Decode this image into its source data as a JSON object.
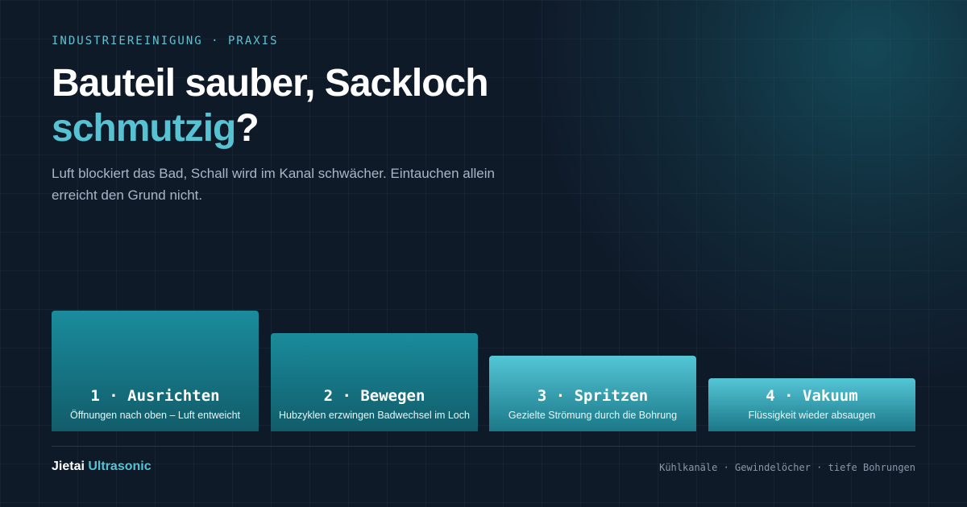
{
  "eyebrow": "INDUSTRIEREINIGUNG · PRAXIS",
  "title": {
    "main": "Bauteil sauber, Sackloch",
    "highlight": "schmutzig",
    "end": "?"
  },
  "subtitle": "Luft blockiert das Bad, Schall wird im Kanal schwächer. Eintauchen allein erreicht den Grund nicht.",
  "steps": [
    {
      "label": "1 · Ausrichten",
      "desc": "Öffnungen nach oben – Luft entweicht"
    },
    {
      "label": "2 · Bewegen",
      "desc": "Hubzyklen erzwingen Badwechsel im Loch"
    },
    {
      "label": "3 · Spritzen",
      "desc": "Gezielte Strömung durch die Bohrung"
    },
    {
      "label": "4 · Vakuum",
      "desc": "Flüssigkeit wieder absaugen"
    }
  ],
  "footer": {
    "brand": "Jietai",
    "brand_highlight": "Ultrasonic",
    "tags": "Kühlkanäle · Gewindelöcher · tiefe Bohrungen"
  }
}
